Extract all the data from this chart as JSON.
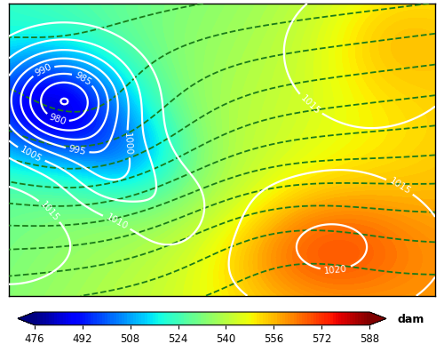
{
  "colorbar_label": "dam",
  "colorbar_ticks": [
    476,
    492,
    508,
    524,
    540,
    556,
    572,
    588
  ],
  "vmin": 476,
  "vmax": 588,
  "lon_min": -25,
  "lon_max": 45,
  "lat_min": 30,
  "lat_max": 72,
  "pressure_color": "white",
  "pressure_linewidth": 1.6,
  "temp_color": "#1a7a1a",
  "temp_linewidth": 1.3,
  "coastline_color": "black",
  "coastline_linewidth": 1.0,
  "background_color": "white",
  "figsize": [
    5.0,
    3.87
  ],
  "dpi": 100,
  "colormap": "jet"
}
